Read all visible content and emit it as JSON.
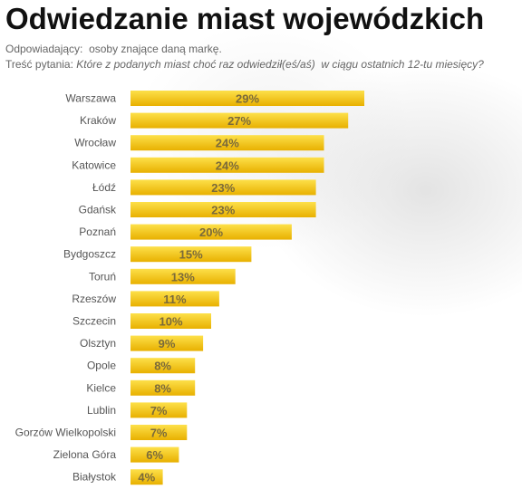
{
  "title": "Odwiedzanie miast wojewódzkich",
  "respondents_label": "Odpowiadający:",
  "respondents_value": "osoby znające daną markę.",
  "question_label": "Treść pytania:",
  "question_text": "Które z podanych miast choć raz odwiedził(eś/aś)",
  "question_text_2": "w ciągu ostatnich 12-tu miesięcy?",
  "colors": {
    "bar_top": "#fde04a",
    "bar_bottom": "#e8b000",
    "value_text": "#7a6a3a"
  },
  "chart_data": {
    "type": "bar",
    "orientation": "horizontal",
    "title": "Odwiedzanie miast wojewódzkich",
    "categories": [
      "Warszawa",
      "Kraków",
      "Wrocław",
      "Katowice",
      "Łódź",
      "Gdańsk",
      "Poznań",
      "Bydgoszcz",
      "Toruń",
      "Rzeszów",
      "Szczecin",
      "Olsztyn",
      "Opole",
      "Kielce",
      "Lublin",
      "Gorzów Wielkopolski",
      "Zielona Góra",
      "Białystok"
    ],
    "values": [
      29,
      27,
      24,
      24,
      23,
      23,
      20,
      15,
      13,
      11,
      10,
      9,
      8,
      8,
      7,
      7,
      6,
      4
    ],
    "value_labels": [
      "29%",
      "27%",
      "24%",
      "24%",
      "23%",
      "23%",
      "20%",
      "15%",
      "13%",
      "11%",
      "10%",
      "9%",
      "8%",
      "8%",
      "7%",
      "7%",
      "6%",
      "4%"
    ],
    "unit": "%",
    "xlim": [
      0,
      29
    ],
    "grid": false,
    "legend": "none"
  }
}
